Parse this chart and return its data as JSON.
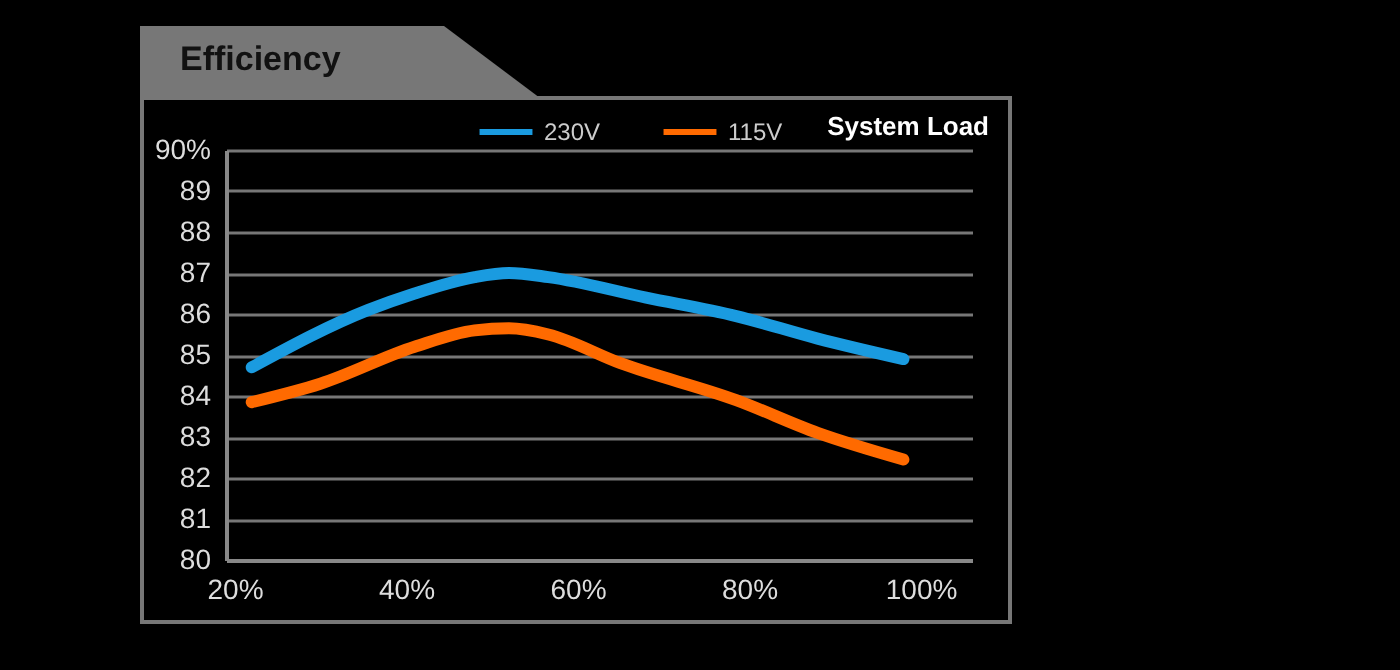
{
  "chart_data": {
    "type": "line",
    "title": "Efficiency",
    "xlabel": "System Load",
    "x": [
      22,
      30,
      35.6,
      41,
      48,
      52,
      56.6,
      65,
      68,
      78.5,
      88,
      98
    ],
    "series": [
      {
        "name": "230V",
        "color": "#1a9be0",
        "values": [
          84.7,
          null,
          86.1,
          86.5,
          86.9,
          87.0,
          86.9,
          null,
          86.4,
          85.95,
          85.4,
          84.9
        ]
      },
      {
        "name": "115V",
        "color": "#ff6a00",
        "values": [
          83.85,
          84.3,
          null,
          85.2,
          85.6,
          85.65,
          85.5,
          84.8,
          null,
          83.9,
          83.1,
          82.45
        ]
      }
    ],
    "xlim": [
      19,
      106
    ],
    "xticks": [
      {
        "value": 20,
        "label": "20%"
      },
      {
        "value": 40,
        "label": "40%"
      },
      {
        "value": 60,
        "label": "60%"
      },
      {
        "value": 80,
        "label": "80%"
      },
      {
        "value": 100,
        "label": "100%"
      }
    ],
    "ylim": [
      80,
      90
    ],
    "yticks": [
      80,
      81,
      82,
      83,
      84,
      85,
      86,
      87,
      88,
      89,
      {
        "value": 90,
        "label": "90%"
      }
    ],
    "grid": "y",
    "legend": "top",
    "line_style": "solid",
    "marker": "none"
  }
}
